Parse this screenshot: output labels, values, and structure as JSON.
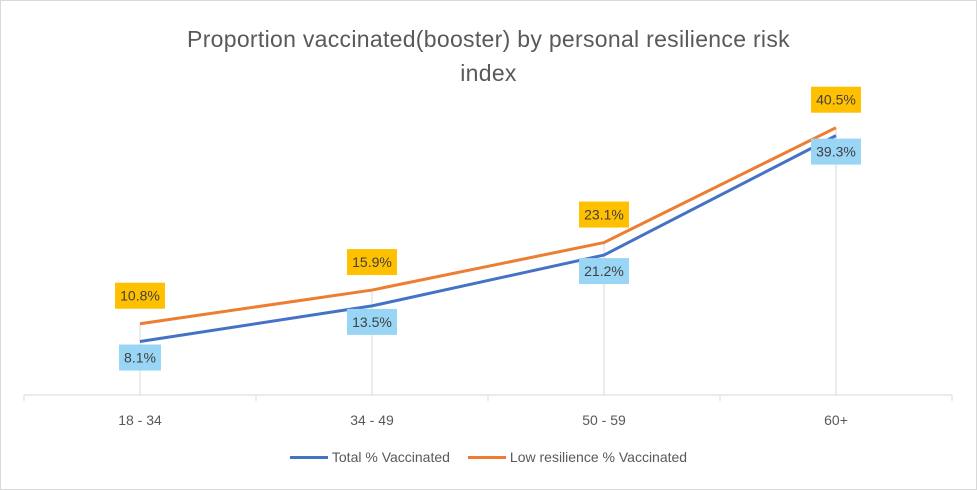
{
  "chart_data": {
    "type": "line",
    "title_line1": "Proportion  vaccinated(booster)   by personal  resilience  risk",
    "title_line2": "index",
    "categories": [
      "18 - 34",
      "34 - 49",
      "50 - 59",
      "60+"
    ],
    "series": [
      {
        "name": "Total % Vaccinated",
        "values": [
          8.1,
          13.5,
          21.2,
          39.3
        ],
        "labels": [
          "8.1%",
          "13.5%",
          "21.2%",
          "39.3%"
        ],
        "color": "#4472c4",
        "label_fill": "#99d6f5",
        "label_position": "below"
      },
      {
        "name": "Low resilience % Vaccinated",
        "values": [
          10.8,
          15.9,
          23.1,
          40.5
        ],
        "labels": [
          "10.8%",
          "15.9%",
          "23.1%",
          "40.5%"
        ],
        "color": "#ed7d31",
        "label_fill": "#ffc000",
        "label_position": "above"
      }
    ],
    "ylim": [
      0,
      45
    ],
    "grid": false,
    "legend_position": "bottom"
  }
}
